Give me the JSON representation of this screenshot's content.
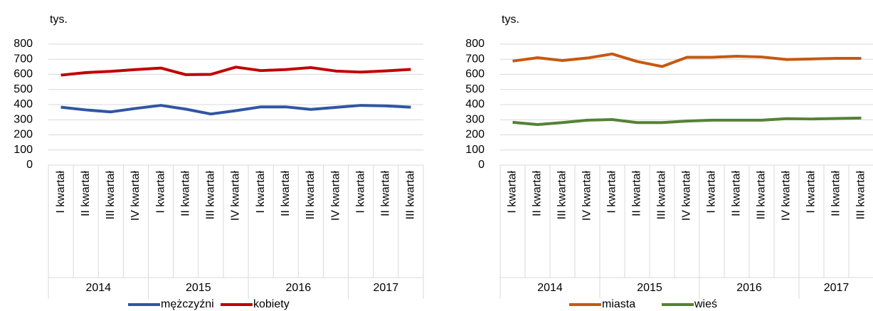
{
  "chart_data": [
    {
      "type": "line",
      "y_label": "tys.",
      "category_groups": [
        {
          "name": "2014",
          "categories": [
            "I kwartał",
            "II kwartał",
            "III kwartał",
            "IV kwartał"
          ]
        },
        {
          "name": "2015",
          "categories": [
            "I kwartał",
            "II kwartał",
            "III kwartał",
            "IV kwartał"
          ]
        },
        {
          "name": "2016",
          "categories": [
            "I kwartał",
            "II kwartał",
            "III kwartał",
            "IV kwartał"
          ]
        },
        {
          "name": "2017",
          "categories": [
            "I kwartał",
            "II kwartał",
            "III kwartał"
          ]
        }
      ],
      "series": [
        {
          "name": "mężczyźni",
          "color": "#2f55a4",
          "values": [
            383,
            365,
            352,
            375,
            395,
            370,
            338,
            360,
            385,
            385,
            368,
            382,
            395,
            392,
            383
          ]
        },
        {
          "name": "kobiety",
          "color": "#c00000",
          "values": [
            595,
            612,
            620,
            632,
            642,
            598,
            600,
            648,
            625,
            632,
            645,
            622,
            615,
            623,
            633
          ]
        }
      ],
      "ylim": [
        0,
        800
      ],
      "yticks": [
        0,
        100,
        200,
        300,
        400,
        500,
        600,
        700,
        800
      ],
      "grid": true,
      "legend": "bottom"
    },
    {
      "type": "line",
      "y_label": "tys.",
      "category_groups": [
        {
          "name": "2014",
          "categories": [
            "I kwartał",
            "II kwartał",
            "III kwartał",
            "IV kwartał"
          ]
        },
        {
          "name": "2015",
          "categories": [
            "I kwartał",
            "II kwartał",
            "III kwartał",
            "IV kwartał"
          ]
        },
        {
          "name": "2016",
          "categories": [
            "I kwartał",
            "II kwartał",
            "III kwartał",
            "IV kwartał"
          ]
        },
        {
          "name": "2017",
          "categories": [
            "I kwartał",
            "II kwartał",
            "III kwartał"
          ]
        }
      ],
      "series": [
        {
          "name": "miasta",
          "color": "#c65911",
          "values": [
            688,
            710,
            692,
            708,
            735,
            685,
            652,
            713,
            713,
            720,
            715,
            698,
            702,
            706,
            706
          ]
        },
        {
          "name": "wieś",
          "color": "#548235",
          "values": [
            283,
            268,
            281,
            297,
            301,
            281,
            281,
            291,
            297,
            297,
            297,
            307,
            305,
            308,
            311
          ]
        }
      ],
      "ylim": [
        0,
        800
      ],
      "yticks": [
        0,
        100,
        200,
        300,
        400,
        500,
        600,
        700,
        800
      ],
      "grid": true,
      "legend": "bottom"
    }
  ]
}
